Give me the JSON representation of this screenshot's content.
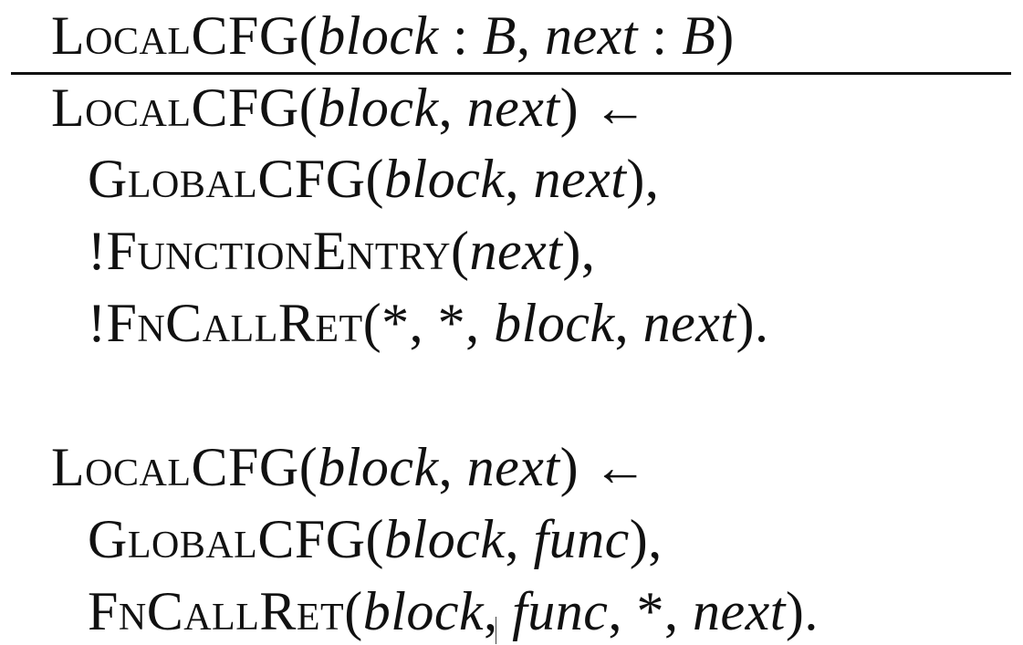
{
  "header": {
    "pred": "LocalCFG",
    "open": "(",
    "a1": "block",
    "sep1": " : ",
    "t1": "B",
    "comma": ", ",
    "a2": "next",
    "sep2": " : ",
    "t2": "B",
    "close": ")"
  },
  "rule1": {
    "head": {
      "pred": "LocalCFG",
      "open": "(",
      "a1": "block",
      "comma": ", ",
      "a2": "next",
      "close": ")",
      "arrow": " ←"
    },
    "b1": {
      "pred": "GlobalCFG",
      "open": "(",
      "a1": "block",
      "comma": ", ",
      "a2": "next",
      "close": "),",
      "neg": ""
    },
    "b2": {
      "neg": "!",
      "pred": "FunctionEntry",
      "open": "(",
      "a1": "next",
      "close": "),"
    },
    "b3": {
      "neg": "!",
      "pred": "FnCallRet",
      "open": "(*, *, ",
      "a1": "block",
      "comma": ", ",
      "a2": "next",
      "close": ")."
    }
  },
  "rule2": {
    "head": {
      "pred": "LocalCFG",
      "open": "(",
      "a1": "block",
      "comma": ", ",
      "a2": "next",
      "close": ")",
      "arrow": " ←"
    },
    "b1": {
      "pred": "GlobalCFG",
      "open": "(",
      "a1": "block",
      "comma": ", ",
      "a2": "func",
      "close": "),"
    },
    "b2": {
      "pred": "FnCallRet",
      "open": "(",
      "a1": "block",
      "comma1": ", ",
      "a2": "func",
      "mid": ", *, ",
      "a3": "next",
      "close": ")."
    }
  }
}
